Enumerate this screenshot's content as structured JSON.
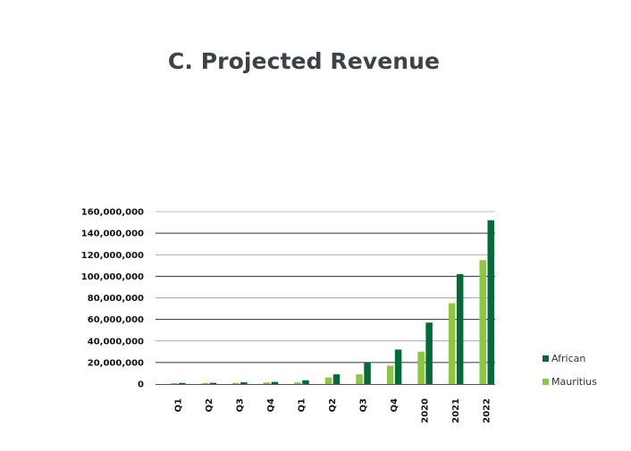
{
  "chart_data": {
    "type": "bar",
    "title": "C. Projected Revenue",
    "xlabel": "",
    "ylabel": "",
    "categories": [
      "Q1",
      "Q2",
      "Q3",
      "Q4",
      "Q1",
      "Q2",
      "Q3",
      "Q4",
      "2020",
      "2021",
      "2022"
    ],
    "series": [
      {
        "name": "Mauritius",
        "color": "#8dc63f",
        "values": [
          800000,
          900000,
          1000000,
          1500000,
          1500000,
          6000000,
          9000000,
          17000000,
          30000000,
          75000000,
          115000000
        ]
      },
      {
        "name": "African",
        "color": "#046a38",
        "values": [
          1000000,
          1100000,
          1600000,
          2000000,
          3500000,
          9000000,
          20000000,
          32000000,
          57000000,
          102000000,
          152000000
        ]
      }
    ],
    "legend_order": [
      "African",
      "Mauritius"
    ],
    "yticks": [
      "0",
      "20,000,000",
      "40,000,000",
      "60,000,000",
      "80,000,000",
      "100,000,000",
      "120,000,000",
      "140,000,000",
      "160,000,000"
    ],
    "ylim": [
      0,
      160000000
    ],
    "grid": true,
    "legend_position": "right"
  }
}
